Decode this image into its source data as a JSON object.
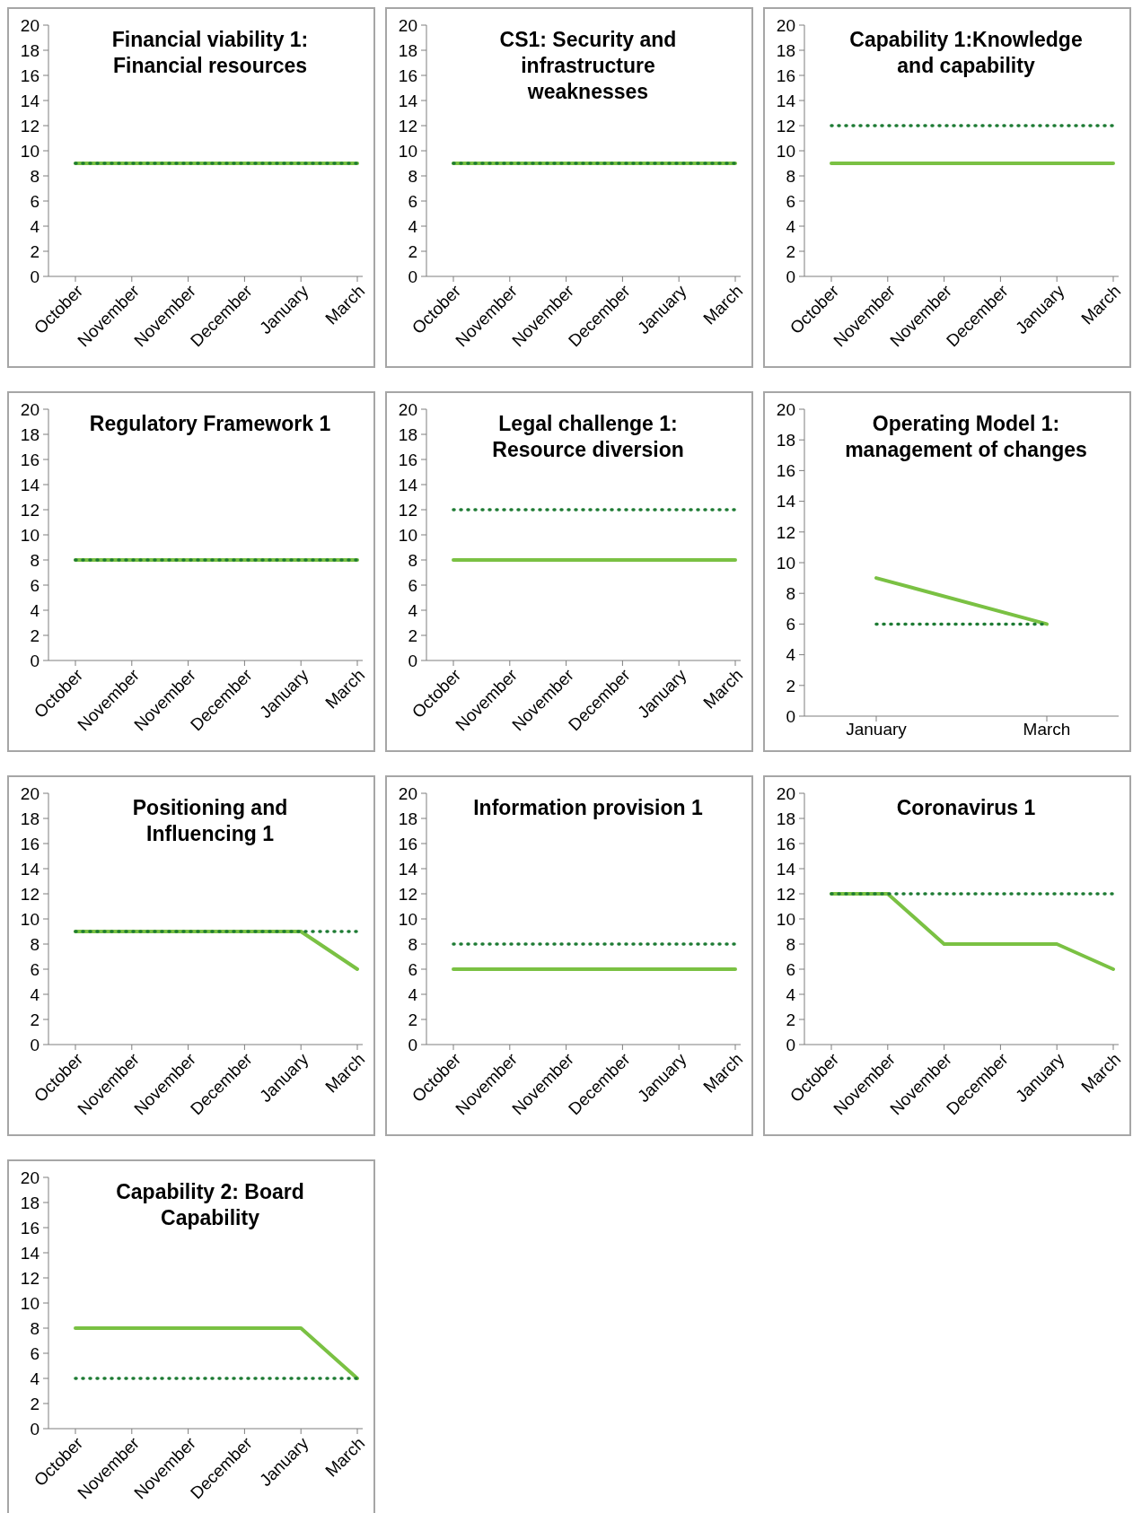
{
  "chart_data": [
    {
      "type": "line",
      "title": "Financial viability 1: Financial resources",
      "categories": [
        "October",
        "November",
        "November",
        "December",
        "January",
        "March"
      ],
      "ylim": [
        0,
        20
      ],
      "yticks": [
        0,
        2,
        4,
        6,
        8,
        10,
        12,
        14,
        16,
        18,
        20
      ],
      "grid": false,
      "legend": false,
      "marker": "none",
      "series": [
        {
          "color": "#7ac143",
          "line_style": "solid",
          "values": [
            9,
            9,
            9,
            9,
            9,
            9
          ]
        },
        {
          "color": "#1e7b34",
          "line_style": "dotted",
          "values": [
            9,
            9,
            9,
            9,
            9,
            9
          ]
        }
      ]
    },
    {
      "type": "line",
      "title": "CS1: Security and infrastructure weaknesses",
      "categories": [
        "October",
        "November",
        "November",
        "December",
        "January",
        "March"
      ],
      "ylim": [
        0,
        20
      ],
      "yticks": [
        0,
        2,
        4,
        6,
        8,
        10,
        12,
        14,
        16,
        18,
        20
      ],
      "grid": false,
      "legend": false,
      "marker": "none",
      "series": [
        {
          "color": "#7ac143",
          "line_style": "solid",
          "values": [
            9,
            9,
            9,
            9,
            9,
            9
          ]
        },
        {
          "color": "#1e7b34",
          "line_style": "dotted",
          "values": [
            9,
            9,
            9,
            9,
            9,
            9
          ]
        }
      ]
    },
    {
      "type": "line",
      "title": "Capability 1:Knowledge and capability",
      "categories": [
        "October",
        "November",
        "November",
        "December",
        "January",
        "March"
      ],
      "ylim": [
        0,
        20
      ],
      "yticks": [
        0,
        2,
        4,
        6,
        8,
        10,
        12,
        14,
        16,
        18,
        20
      ],
      "grid": false,
      "legend": false,
      "marker": "none",
      "series": [
        {
          "color": "#7ac143",
          "line_style": "solid",
          "values": [
            9,
            9,
            9,
            9,
            9,
            9
          ]
        },
        {
          "color": "#1e7b34",
          "line_style": "dotted",
          "values": [
            12,
            12,
            12,
            12,
            12,
            12
          ]
        }
      ]
    },
    {
      "type": "line",
      "title": "Regulatory Framework 1",
      "categories": [
        "October",
        "November",
        "November",
        "December",
        "January",
        "March"
      ],
      "ylim": [
        0,
        20
      ],
      "yticks": [
        0,
        2,
        4,
        6,
        8,
        10,
        12,
        14,
        16,
        18,
        20
      ],
      "grid": false,
      "legend": false,
      "marker": "none",
      "series": [
        {
          "color": "#7ac143",
          "line_style": "solid",
          "values": [
            8,
            8,
            8,
            8,
            8,
            8
          ]
        },
        {
          "color": "#1e7b34",
          "line_style": "dotted",
          "values": [
            8,
            8,
            8,
            8,
            8,
            8
          ]
        }
      ]
    },
    {
      "type": "line",
      "title": "Legal challenge 1: Resource diversion",
      "categories": [
        "October",
        "November",
        "November",
        "December",
        "January",
        "March"
      ],
      "ylim": [
        0,
        20
      ],
      "yticks": [
        0,
        2,
        4,
        6,
        8,
        10,
        12,
        14,
        16,
        18,
        20
      ],
      "grid": false,
      "legend": false,
      "marker": "none",
      "series": [
        {
          "color": "#7ac143",
          "line_style": "solid",
          "values": [
            8,
            8,
            8,
            8,
            8,
            8
          ]
        },
        {
          "color": "#1e7b34",
          "line_style": "dotted",
          "values": [
            12,
            12,
            12,
            12,
            12,
            12
          ]
        }
      ]
    },
    {
      "type": "line",
      "title": "Operating Model 1: management of changes",
      "categories": [
        "January",
        "March"
      ],
      "ylim": [
        0,
        20
      ],
      "yticks": [
        0,
        2,
        4,
        6,
        8,
        10,
        12,
        14,
        16,
        18,
        20
      ],
      "grid": false,
      "legend": false,
      "marker": "none",
      "series": [
        {
          "color": "#7ac143",
          "line_style": "solid",
          "values": [
            9,
            6
          ]
        },
        {
          "color": "#1e7b34",
          "line_style": "dotted",
          "values": [
            6,
            6
          ]
        }
      ]
    },
    {
      "type": "line",
      "title": "Positioning and Influencing 1",
      "categories": [
        "October",
        "November",
        "November",
        "December",
        "January",
        "March"
      ],
      "ylim": [
        0,
        20
      ],
      "yticks": [
        0,
        2,
        4,
        6,
        8,
        10,
        12,
        14,
        16,
        18,
        20
      ],
      "grid": false,
      "legend": false,
      "marker": "none",
      "series": [
        {
          "color": "#7ac143",
          "line_style": "solid",
          "values": [
            9,
            9,
            9,
            9,
            9,
            6
          ]
        },
        {
          "color": "#1e7b34",
          "line_style": "dotted",
          "values": [
            9,
            9,
            9,
            9,
            9,
            9
          ]
        }
      ]
    },
    {
      "type": "line",
      "title": "Information provision 1",
      "categories": [
        "October",
        "November",
        "November",
        "December",
        "January",
        "March"
      ],
      "ylim": [
        0,
        20
      ],
      "yticks": [
        0,
        2,
        4,
        6,
        8,
        10,
        12,
        14,
        16,
        18,
        20
      ],
      "grid": false,
      "legend": false,
      "marker": "none",
      "series": [
        {
          "color": "#7ac143",
          "line_style": "solid",
          "values": [
            6,
            6,
            6,
            6,
            6,
            6
          ]
        },
        {
          "color": "#1e7b34",
          "line_style": "dotted",
          "values": [
            8,
            8,
            8,
            8,
            8,
            8
          ]
        }
      ]
    },
    {
      "type": "line",
      "title": "Coronavirus 1",
      "categories": [
        "October",
        "November",
        "November",
        "December",
        "January",
        "March"
      ],
      "ylim": [
        0,
        20
      ],
      "yticks": [
        0,
        2,
        4,
        6,
        8,
        10,
        12,
        14,
        16,
        18,
        20
      ],
      "grid": false,
      "legend": false,
      "marker": "none",
      "series": [
        {
          "color": "#7ac143",
          "line_style": "solid",
          "values": [
            12,
            12,
            8,
            8,
            8,
            6
          ]
        },
        {
          "color": "#1e7b34",
          "line_style": "dotted",
          "values": [
            12,
            12,
            12,
            12,
            12,
            12
          ]
        }
      ]
    },
    {
      "type": "line",
      "title": "Capability 2: Board Capability",
      "categories": [
        "October",
        "November",
        "November",
        "December",
        "January",
        "March"
      ],
      "ylim": [
        0,
        20
      ],
      "yticks": [
        0,
        2,
        4,
        6,
        8,
        10,
        12,
        14,
        16,
        18,
        20
      ],
      "grid": false,
      "legend": false,
      "marker": "none",
      "series": [
        {
          "color": "#7ac143",
          "line_style": "solid",
          "values": [
            8,
            8,
            8,
            8,
            8,
            4
          ]
        },
        {
          "color": "#1e7b34",
          "line_style": "dotted",
          "values": [
            4,
            4,
            4,
            4,
            4,
            4
          ]
        }
      ]
    }
  ]
}
